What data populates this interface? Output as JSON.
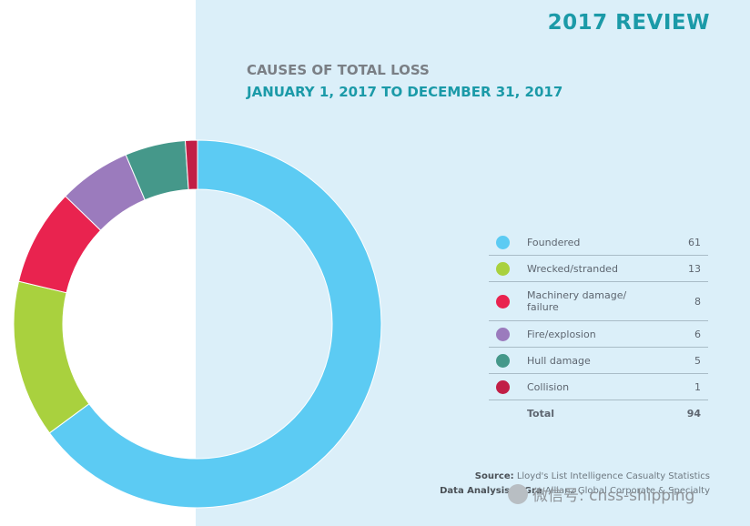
{
  "header": {
    "review": "2017 REVIEW"
  },
  "chart_data": {
    "type": "pie",
    "title": "CAUSES OF TOTAL LOSS",
    "subtitle": "JANUARY 1, 2017 TO DECEMBER 31, 2017",
    "categories": [
      "Foundered",
      "Wrecked/stranded",
      "Machinery damage/ failure",
      "Fire/explosion",
      "Hull damage",
      "Collision"
    ],
    "values": [
      61,
      13,
      8,
      6,
      5,
      1
    ],
    "colors": [
      "#5ccbf3",
      "#a9d13e",
      "#e9234f",
      "#9b7bbd",
      "#45988a",
      "#c11f46"
    ],
    "total_label": "Total",
    "total": 94,
    "legend_position": "right"
  },
  "source": {
    "label1": "Source:",
    "text1": "Lloyd's List Intelligence Casualty Statistics",
    "label2": "Data Analysis & Gra",
    "text2": "Allianz Global Corporate & Specialty"
  },
  "watermark": {
    "text": "微信号: cnss-shipping",
    "icon": "wechat-icon"
  }
}
